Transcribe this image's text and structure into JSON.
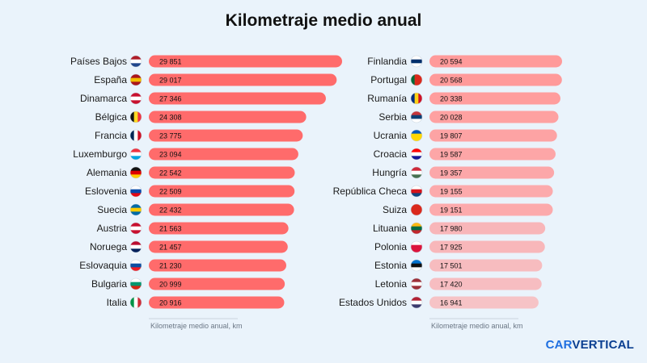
{
  "title": "Kilometraje medio anual",
  "logo": {
    "part1": "CAR",
    "part2": "VERTICAL"
  },
  "chart_data": {
    "type": "bar",
    "orientation": "horizontal",
    "title": "Kilometraje medio anual",
    "xlabel": "Kilometraje medio anual, km",
    "panels": [
      {
        "categories": [
          "Países Bajos",
          "España",
          "Dinamarca",
          "Bélgica",
          "Francia",
          "Luxemburgo",
          "Alemania",
          "Eslovenia",
          "Suecia",
          "Austria",
          "Noruega",
          "Eslovaquia",
          "Bulgaria",
          "Italia"
        ],
        "values": [
          29851,
          29017,
          27346,
          24308,
          23775,
          23094,
          22542,
          22509,
          22432,
          21563,
          21457,
          21230,
          20999,
          20916
        ],
        "labels": [
          "29 851",
          "29 017",
          "27 346",
          "24 308",
          "23 775",
          "23 094",
          "22 542",
          "22 509",
          "22 432",
          "21 563",
          "21 457",
          "21 230",
          "20 999",
          "20 916"
        ],
        "flags": [
          [
            "#ae1c28",
            "#ffffff",
            "#21468b"
          ],
          [
            "#aa151b",
            "#f1bf00",
            "#aa151b"
          ],
          [
            "#c8102e",
            "#ffffff",
            "#c8102e"
          ],
          [
            "#111111",
            "#fdda24",
            "#ef3340"
          ],
          [
            "#002654",
            "#ffffff",
            "#ce1126"
          ],
          [
            "#ef3340",
            "#ffffff",
            "#00a3e0"
          ],
          [
            "#111111",
            "#dd0000",
            "#ffce00"
          ],
          [
            "#ffffff",
            "#0047ab",
            "#e30613"
          ],
          [
            "#006aa7",
            "#fecc00",
            "#006aa7"
          ],
          [
            "#c8102e",
            "#ffffff",
            "#c8102e"
          ],
          [
            "#ba0c2f",
            "#ffffff",
            "#00205b"
          ],
          [
            "#ffffff",
            "#0b4ea2",
            "#ee1c25"
          ],
          [
            "#ffffff",
            "#00966e",
            "#d62612"
          ],
          [
            "#009246",
            "#ffffff",
            "#ce2b37"
          ]
        ],
        "flag_dir": [
          "h",
          "h",
          "h",
          "v",
          "v",
          "h",
          "h",
          "h",
          "h",
          "h",
          "h",
          "h",
          "h",
          "v"
        ],
        "color": "#ff6b6b"
      },
      {
        "categories": [
          "Finlandia",
          "Portugal",
          "Rumanía",
          "Serbia",
          "Ucrania",
          "Croacia",
          "Hungría",
          "República Checa",
          "Suiza",
          "Lituania",
          "Polonia",
          "Estonia",
          "Letonia",
          "Estados Unidos"
        ],
        "values": [
          20594,
          20568,
          20338,
          20028,
          19807,
          19587,
          19357,
          19155,
          19151,
          17980,
          17925,
          17501,
          17420,
          16941
        ],
        "labels": [
          "20 594",
          "20 568",
          "20 338",
          "20 028",
          "19 807",
          "19 587",
          "19 357",
          "19 155",
          "19 151",
          "17 980",
          "17 925",
          "17 501",
          "17 420",
          "16 941"
        ],
        "flags": [
          [
            "#ffffff",
            "#002f6c",
            "#ffffff"
          ],
          [
            "#046a38",
            "#da291c",
            "#da291c"
          ],
          [
            "#002b7f",
            "#fcd116",
            "#ce1126"
          ],
          [
            "#c6363c",
            "#0c4076",
            "#ffffff"
          ],
          [
            "#0057b7",
            "#ffd700",
            "#ffd700"
          ],
          [
            "#ff0000",
            "#ffffff",
            "#171796"
          ],
          [
            "#ce2939",
            "#ffffff",
            "#477050"
          ],
          [
            "#ffffff",
            "#d7141a",
            "#11457e"
          ],
          [
            "#da291c",
            "#da291c",
            "#da291c"
          ],
          [
            "#fdb913",
            "#006a44",
            "#c1272d"
          ],
          [
            "#ffffff",
            "#dc143c",
            "#dc143c"
          ],
          [
            "#0072ce",
            "#111111",
            "#ffffff"
          ],
          [
            "#9e3039",
            "#ffffff",
            "#9e3039"
          ],
          [
            "#b22234",
            "#ffffff",
            "#3c3b6e"
          ]
        ],
        "flag_dir": [
          "h",
          "v",
          "v",
          "h",
          "h",
          "h",
          "h",
          "h",
          "h",
          "h",
          "h",
          "h",
          "h",
          "h"
        ],
        "color": "#ff9a9a"
      }
    ]
  }
}
